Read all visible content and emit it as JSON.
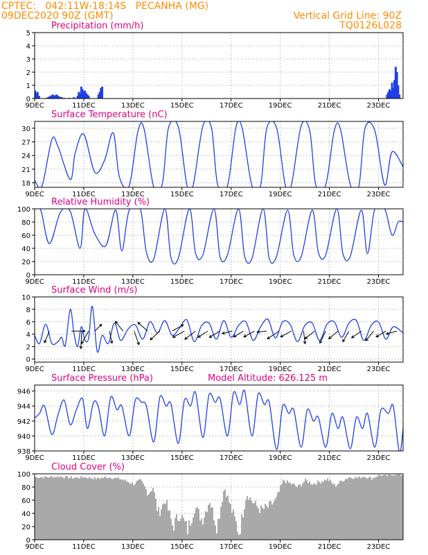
{
  "header": {
    "station": "CPTEC:   042:11W-18:14S   PECANHA (MG)",
    "run": "09DEC2020 90Z (GMT)",
    "grid_note": "Vertical Grid Line: 90Z",
    "code": "TQ0126L028"
  },
  "x_axis": {
    "tick_labels": [
      "9DEC",
      "11DEC",
      "13DEC",
      "15DEC",
      "17DEC",
      "19DEC",
      "21DEC",
      "23DEC"
    ],
    "tick_days": [
      0,
      2,
      4,
      6,
      8,
      10,
      12,
      14
    ],
    "xlim": [
      0,
      15
    ]
  },
  "colors": {
    "header": "#ff8c00",
    "title": "#e0007f",
    "line": "#1f3fe6",
    "bar": "#1f3fe6",
    "cloud": "#a9a9a9",
    "arrow": "#000000"
  },
  "chart_data": [
    {
      "type": "bar",
      "title": "Precipitation (mm/h)",
      "ylim": [
        0,
        5
      ],
      "yticks": [
        0,
        1,
        2,
        3,
        4,
        5
      ],
      "grid": true,
      "x": [
        0.02,
        0.07,
        0.12,
        0.18,
        0.5,
        0.55,
        0.6,
        0.65,
        0.7,
        0.75,
        0.8,
        0.85,
        0.9,
        0.95,
        1.0,
        1.05,
        1.1,
        1.2,
        1.4,
        1.6,
        1.75,
        1.8,
        1.85,
        1.9,
        1.95,
        2.0,
        2.05,
        2.1,
        2.15,
        2.2,
        2.6,
        2.65,
        2.7,
        2.75,
        14.35,
        14.4,
        14.45,
        14.5,
        14.55,
        14.6,
        14.65,
        14.7,
        14.75,
        14.8,
        14.85
      ],
      "values": [
        0.6,
        0.4,
        0.5,
        0.2,
        0.05,
        0.1,
        0.15,
        0.2,
        0.25,
        0.3,
        0.2,
        0.25,
        0.3,
        0.2,
        0.15,
        0.1,
        0.1,
        0.05,
        0.05,
        0.1,
        0.2,
        0.5,
        0.4,
        0.9,
        0.7,
        0.5,
        0.6,
        0.4,
        0.3,
        0.2,
        0.3,
        0.5,
        0.8,
        0.9,
        0.3,
        0.5,
        0.7,
        0.6,
        1.2,
        0.8,
        1.4,
        2.4,
        2.0,
        1.0,
        0.3
      ]
    },
    {
      "type": "line",
      "title": "Surface Temperature (nC)",
      "ylim": [
        17,
        31.5
      ],
      "yticks": [
        18,
        21,
        24,
        27,
        30
      ],
      "grid": true,
      "x": [
        0,
        0.3,
        0.7,
        0.95,
        1.45,
        1.65,
        2.0,
        2.45,
        2.85,
        3.2,
        3.45,
        3.85,
        4.2,
        4.45,
        4.85,
        5.2,
        5.45,
        5.85,
        6.2,
        6.45,
        6.85,
        7.2,
        7.45,
        7.85,
        8.2,
        8.45,
        8.85,
        9.2,
        9.45,
        9.85,
        10.2,
        10.45,
        10.85,
        11.2,
        11.45,
        11.85,
        12.2,
        12.45,
        12.85,
        13.2,
        13.45,
        13.85,
        14.25,
        14.55,
        15.0
      ],
      "series": [
        {
          "values": [
            18.5,
            17.3,
            27.5,
            26.0,
            18.7,
            24.5,
            28.7,
            20.3,
            23.0,
            29.0,
            19.3,
            17.3,
            29.2,
            30.0,
            17.0,
            17.8,
            30.1,
            30.3,
            17.5,
            17.3,
            30.5,
            30.1,
            17.6,
            17.3,
            30.3,
            30.0,
            17.3,
            17.4,
            30.0,
            30.1,
            17.6,
            17.4,
            30.5,
            29.5,
            17.4,
            17.5,
            29.5,
            29.8,
            17.6,
            17.3,
            30.0,
            29.5,
            17.5,
            24.8,
            21.5
          ]
        }
      ]
    },
    {
      "type": "line",
      "title": "Relative Humidity (%)",
      "ylim": [
        0,
        100
      ],
      "yticks": [
        0,
        20,
        40,
        60,
        80,
        100
      ],
      "grid": true,
      "x": [
        0,
        0.25,
        0.6,
        1.05,
        1.45,
        1.85,
        2.05,
        2.45,
        2.9,
        3.3,
        3.55,
        3.85,
        4.3,
        4.55,
        4.85,
        5.3,
        5.55,
        5.85,
        6.3,
        6.55,
        6.85,
        7.3,
        7.55,
        7.85,
        8.3,
        8.55,
        8.85,
        9.3,
        9.55,
        9.85,
        10.3,
        10.55,
        10.85,
        11.3,
        11.55,
        11.85,
        12.3,
        12.55,
        12.85,
        13.3,
        13.55,
        13.85,
        14.25,
        14.55,
        14.8,
        15.0
      ],
      "series": [
        {
          "values": [
            100,
            98,
            47,
            95,
            96,
            40,
            100,
            62,
            44,
            98,
            36,
            98,
            100,
            34,
            24,
            100,
            26,
            25,
            100,
            33,
            30,
            100,
            27,
            30,
            100,
            28,
            25,
            100,
            25,
            28,
            98,
            30,
            27,
            98,
            34,
            30,
            100,
            32,
            28,
            98,
            32,
            100,
            100,
            60,
            80,
            80
          ]
        }
      ]
    },
    {
      "type": "line",
      "title": "Surface Wind (m/s)",
      "ylim": [
        -0.5,
        10
      ],
      "yticks": [
        0,
        2,
        4,
        6,
        8,
        10
      ],
      "grid": true,
      "x": [
        0,
        0.2,
        0.45,
        0.7,
        0.95,
        1.1,
        1.25,
        1.45,
        1.6,
        1.75,
        1.9,
        2.05,
        2.2,
        2.35,
        2.55,
        2.75,
        3.0,
        3.25,
        3.5,
        3.8,
        4.1,
        4.4,
        4.7,
        5.0,
        5.3,
        5.6,
        5.9,
        6.2,
        6.5,
        6.8,
        7.1,
        7.4,
        7.7,
        8.0,
        8.3,
        8.6,
        8.9,
        9.2,
        9.5,
        9.8,
        10.1,
        10.4,
        10.7,
        11.0,
        11.3,
        11.6,
        11.9,
        12.2,
        12.5,
        12.8,
        13.1,
        13.4,
        13.7,
        14.0,
        14.3,
        14.6,
        15.0
      ],
      "series": [
        {
          "values": [
            3.8,
            2.5,
            5.6,
            2.5,
            2.8,
            3.5,
            2.2,
            8.0,
            4.2,
            2.0,
            5.2,
            3.0,
            3.4,
            8.5,
            1.2,
            3.8,
            2.5,
            5.8,
            3.0,
            4.8,
            5.5,
            3.2,
            6.0,
            4.2,
            6.2,
            3.8,
            5.0,
            6.3,
            2.8,
            5.4,
            5.8,
            3.2,
            6.2,
            3.5,
            5.4,
            6.0,
            3.0,
            5.2,
            6.4,
            3.4,
            6.0,
            5.6,
            2.8,
            5.4,
            5.8,
            3.0,
            5.6,
            6.0,
            3.5,
            5.8,
            6.2,
            3.0,
            5.4,
            6.0,
            3.2,
            5.2,
            4.2
          ]
        }
      ],
      "arrows": {
        "x": [
          0.6,
          1.5,
          1.92,
          2.2,
          2.45,
          3.05,
          3.6,
          4.05,
          4.6,
          5.1,
          5.6,
          6.1,
          6.55,
          7.05,
          7.55,
          8.05,
          8.5,
          8.95,
          9.45,
          9.95,
          10.45,
          10.95,
          11.4,
          11.85,
          12.35,
          12.8,
          13.3,
          13.8,
          14.3,
          14.75
        ],
        "u": [
          -1.0,
          2.8,
          -0.2,
          -1.5,
          1.4,
          0.5,
          -1.6,
          1.0,
          -2.0,
          -2.0,
          2.3,
          -2.4,
          -2.2,
          -2.0,
          -2.2,
          -2.1,
          -2.0,
          -2.2,
          -2.0,
          -2.4,
          -2.2,
          0.3,
          -2.0,
          -1.2,
          -1.9,
          -1.3,
          -2.0,
          -1.6,
          -2.0,
          -2.2
        ],
        "v": [
          -2.4,
          0.0,
          -3.6,
          -2.6,
          1.4,
          -2.5,
          2.0,
          -2.8,
          1.8,
          -1.8,
          1.3,
          -1.3,
          -1.7,
          -1.3,
          -1.3,
          -0.5,
          -1.2,
          -1.2,
          -0.2,
          -1.6,
          -1.2,
          -2.6,
          -1.6,
          -2.5,
          -1.6,
          -2.2,
          -1.4,
          -2.0,
          -1.2,
          -0.6
        ]
      }
    },
    {
      "type": "line",
      "title": "Surface Pressure (hPa)",
      "annotation": "Model Altitude: 626.125 m",
      "ylim": [
        938,
        946.8
      ],
      "yticks": [
        938,
        940,
        942,
        944,
        946
      ],
      "grid": true,
      "x": [
        0,
        0.2,
        0.4,
        0.7,
        0.95,
        1.2,
        1.45,
        1.7,
        1.95,
        2.15,
        2.4,
        2.6,
        2.85,
        3.1,
        3.35,
        3.55,
        3.85,
        4.1,
        4.35,
        4.55,
        4.85,
        5.1,
        5.35,
        5.55,
        5.85,
        6.1,
        6.35,
        6.55,
        6.85,
        7.1,
        7.35,
        7.55,
        7.85,
        8.1,
        8.35,
        8.55,
        8.85,
        9.1,
        9.35,
        9.55,
        9.85,
        10.1,
        10.35,
        10.55,
        10.85,
        11.1,
        11.35,
        11.55,
        11.85,
        12.1,
        12.35,
        12.55,
        12.85,
        13.1,
        13.35,
        13.55,
        13.85,
        14.1,
        14.4,
        14.6,
        14.85,
        15.0
      ],
      "series": [
        {
          "values": [
            942.4,
            943.0,
            944.0,
            940.2,
            942.8,
            944.8,
            941.5,
            943.5,
            945.0,
            941.0,
            944.5,
            943.8,
            940.0,
            945.2,
            943.5,
            944.0,
            940.0,
            944.8,
            944.5,
            944.0,
            939.2,
            945.2,
            944.0,
            944.3,
            939.0,
            944.8,
            944.0,
            945.8,
            939.8,
            945.5,
            944.5,
            945.0,
            940.0,
            945.8,
            944.2,
            946.0,
            940.0,
            945.6,
            944.2,
            944.5,
            938.2,
            944.0,
            943.0,
            943.5,
            938.5,
            943.5,
            942.0,
            942.5,
            938.5,
            943.0,
            941.0,
            942.5,
            938.3,
            942.5,
            941.0,
            943.0,
            938.5,
            943.5,
            943.0,
            944.0,
            937.8,
            941.0
          ]
        }
      ]
    },
    {
      "type": "area",
      "title": "Cloud Cover (%)",
      "ylim": [
        0,
        100
      ],
      "yticks": [
        0,
        20,
        40,
        60,
        80,
        100
      ],
      "grid": true,
      "x": [
        0,
        0.5,
        1.0,
        1.5,
        2.0,
        2.5,
        3.0,
        3.5,
        4.0,
        4.3,
        4.6,
        4.8,
        5.0,
        5.3,
        5.6,
        5.9,
        6.2,
        6.5,
        6.8,
        7.1,
        7.4,
        7.7,
        8.0,
        8.3,
        8.6,
        8.9,
        9.2,
        9.5,
        9.8,
        10.1,
        10.4,
        10.7,
        11.0,
        11.3,
        11.6,
        11.9,
        12.2,
        12.5,
        12.8,
        13.1,
        13.4,
        13.7,
        14.0,
        14.3,
        14.6,
        15.0
      ],
      "values": [
        95,
        95,
        96,
        94,
        95,
        93,
        95,
        92,
        85,
        90,
        70,
        80,
        40,
        60,
        20,
        40,
        15,
        50,
        30,
        60,
        20,
        80,
        45,
        10,
        70,
        55,
        45,
        50,
        60,
        90,
        85,
        80,
        90,
        85,
        88,
        92,
        82,
        90,
        95,
        94,
        96,
        93,
        98,
        97,
        99,
        98
      ]
    }
  ]
}
